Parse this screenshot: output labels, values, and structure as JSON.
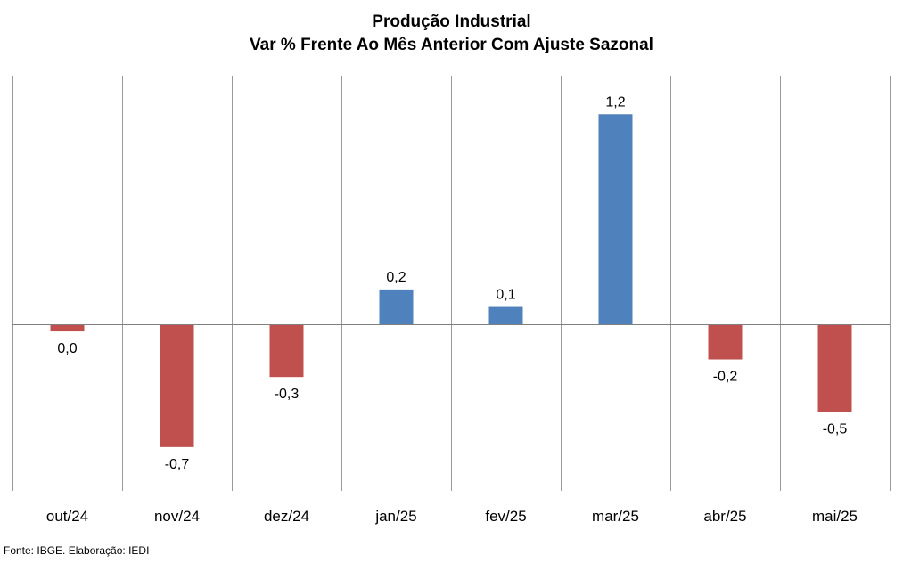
{
  "chart_data": {
    "type": "bar",
    "title": "Produção Industrial",
    "subtitle": "Var % Frente Ao Mês Anterior Com Ajuste Sazonal",
    "categories": [
      "out/24",
      "nov/24",
      "dez/24",
      "jan/25",
      "fev/25",
      "mar/25",
      "abr/25",
      "mai/25"
    ],
    "values": [
      -0.04,
      -0.7,
      -0.3,
      0.2,
      0.1,
      1.2,
      -0.2,
      -0.5
    ],
    "data_labels": [
      "0,0",
      "-0,7",
      "-0,3",
      "0,2",
      "0,1",
      "1,2",
      "-0,2",
      "-0,5"
    ],
    "ylim": [
      -0.95,
      1.42
    ],
    "colors": {
      "positive": "#4f81bd",
      "negative": "#c0504d",
      "grid": "#9a9a9a"
    },
    "grid": true
  },
  "source": "Fonte: IBGE. Elaboração: IEDI"
}
